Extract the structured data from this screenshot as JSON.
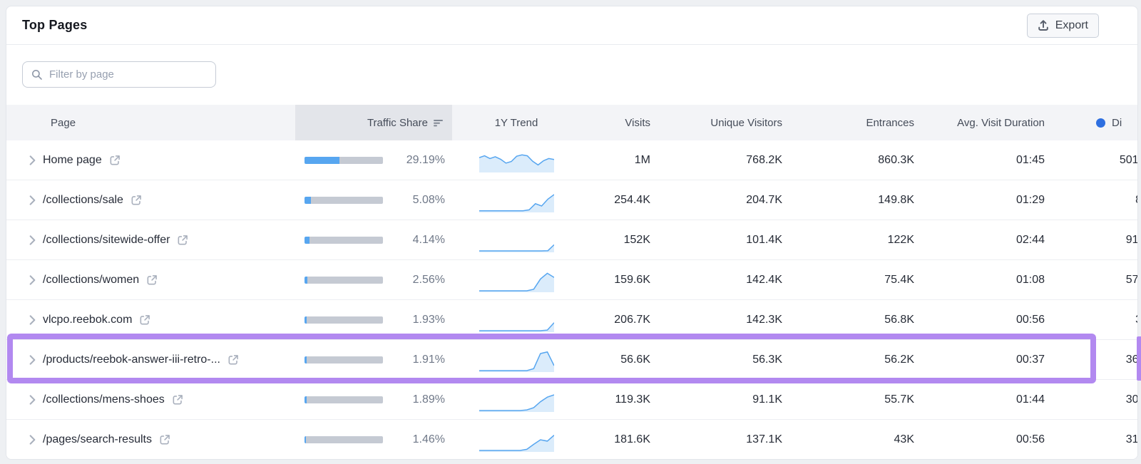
{
  "card": {
    "title": "Top Pages"
  },
  "toolbar": {
    "export_label": "Export"
  },
  "filter": {
    "placeholder": "Filter by page"
  },
  "table": {
    "headers": {
      "page": "Page",
      "traffic_share": "Traffic Share",
      "trend": "1Y Trend",
      "visits": "Visits",
      "unique_visitors": "Unique Visitors",
      "entrances": "Entrances",
      "avg_visit_duration": "Avg. Visit Duration",
      "direct": "Di"
    },
    "sort": {
      "column": "Traffic Share",
      "direction": "desc"
    },
    "rows": [
      {
        "page": "Home page",
        "traffic_share": "29.19%",
        "visits": "1M",
        "unique_visitors": "768.2K",
        "entrances": "860.3K",
        "avg_visit_duration": "01:45",
        "direct": "501.",
        "highlighted": false,
        "trend": [
          62,
          70,
          58,
          66,
          55,
          38,
          45,
          68,
          74,
          70,
          46,
          30,
          48,
          58,
          54
        ]
      },
      {
        "page": "/collections/sale",
        "traffic_share": "5.08%",
        "visits": "254.4K",
        "unique_visitors": "204.7K",
        "entrances": "149.8K",
        "avg_visit_duration": "01:29",
        "direct": "8",
        "highlighted": false,
        "trend": [
          4,
          4,
          4,
          4,
          4,
          4,
          4,
          4,
          8,
          35,
          25,
          55,
          75
        ]
      },
      {
        "page": "/collections/sitewide-offer",
        "traffic_share": "4.14%",
        "visits": "152K",
        "unique_visitors": "101.4K",
        "entrances": "122K",
        "avg_visit_duration": "02:44",
        "direct": "91.",
        "highlighted": false,
        "trend": [
          3,
          3,
          3,
          3,
          3,
          3,
          3,
          3,
          3,
          3,
          3,
          4,
          30
        ]
      },
      {
        "page": "/collections/women",
        "traffic_share": "2.56%",
        "visits": "159.6K",
        "unique_visitors": "142.4K",
        "entrances": "75.4K",
        "avg_visit_duration": "01:08",
        "direct": "57.",
        "highlighted": false,
        "trend": [
          3,
          3,
          3,
          3,
          3,
          3,
          3,
          3,
          10,
          55,
          80,
          62
        ]
      },
      {
        "page": "vlcpo.reebok.com",
        "traffic_share": "1.93%",
        "visits": "206.7K",
        "unique_visitors": "142.3K",
        "entrances": "56.8K",
        "avg_visit_duration": "00:56",
        "direct": "3",
        "highlighted": false,
        "trend": [
          3,
          3,
          3,
          3,
          3,
          3,
          3,
          3,
          3,
          3,
          6,
          38
        ]
      },
      {
        "page": "/products/reebok-answer-iii-retro-...",
        "traffic_share": "1.91%",
        "visits": "56.6K",
        "unique_visitors": "56.3K",
        "entrances": "56.2K",
        "avg_visit_duration": "00:37",
        "direct": "36.",
        "highlighted": true,
        "trend": [
          3,
          3,
          3,
          3,
          3,
          3,
          3,
          3,
          12,
          78,
          85,
          25
        ]
      },
      {
        "page": "/collections/mens-shoes",
        "traffic_share": "1.89%",
        "visits": "119.3K",
        "unique_visitors": "91.1K",
        "entrances": "55.7K",
        "avg_visit_duration": "01:44",
        "direct": "30.",
        "highlighted": false,
        "trend": [
          3,
          3,
          3,
          3,
          3,
          3,
          3,
          6,
          16,
          42,
          62,
          72
        ]
      },
      {
        "page": "/pages/search-results",
        "traffic_share": "1.46%",
        "visits": "181.6K",
        "unique_visitors": "137.1K",
        "entrances": "43K",
        "avg_visit_duration": "00:56",
        "direct": "31.",
        "highlighted": false,
        "trend": [
          3,
          3,
          3,
          3,
          3,
          3,
          3,
          8,
          30,
          50,
          44,
          70
        ]
      }
    ]
  },
  "colors": {
    "accent_blue": "#57a6f0",
    "spark_fill": "#dbecfb",
    "bar_track": "#c5cad3",
    "highlight_purple": "#b289f0",
    "dot_blue": "#2e6fe0"
  },
  "bar_scale": 1.54
}
